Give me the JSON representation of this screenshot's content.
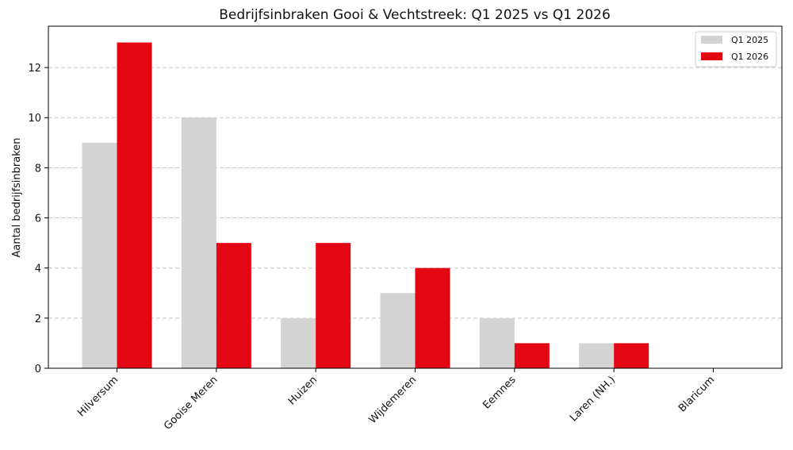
{
  "chart_data": {
    "type": "bar",
    "title": "Bedrijfsinbraken Gooi & Vechtstreek: Q1 2025 vs Q1 2026",
    "xlabel": "",
    "ylabel": "Aantal bedrijfsinbraken",
    "categories": [
      "Hilversum",
      "Gooise Meren",
      "Huizen",
      "Wijdemeren",
      "Eemnes",
      "Laren (NH.)",
      "Blaricum"
    ],
    "series": [
      {
        "name": "Q1 2025",
        "color": "#d3d3d3",
        "values": [
          9,
          10,
          2,
          3,
          2,
          1,
          0
        ]
      },
      {
        "name": "Q1 2026",
        "color": "#e30613",
        "values": [
          13,
          5,
          5,
          4,
          1,
          1,
          0
        ]
      }
    ],
    "ylim": [
      0,
      13.65
    ],
    "yticks": [
      0,
      2,
      4,
      6,
      8,
      10,
      12
    ],
    "grid": "y-dashed",
    "legend_position": "top-right"
  }
}
